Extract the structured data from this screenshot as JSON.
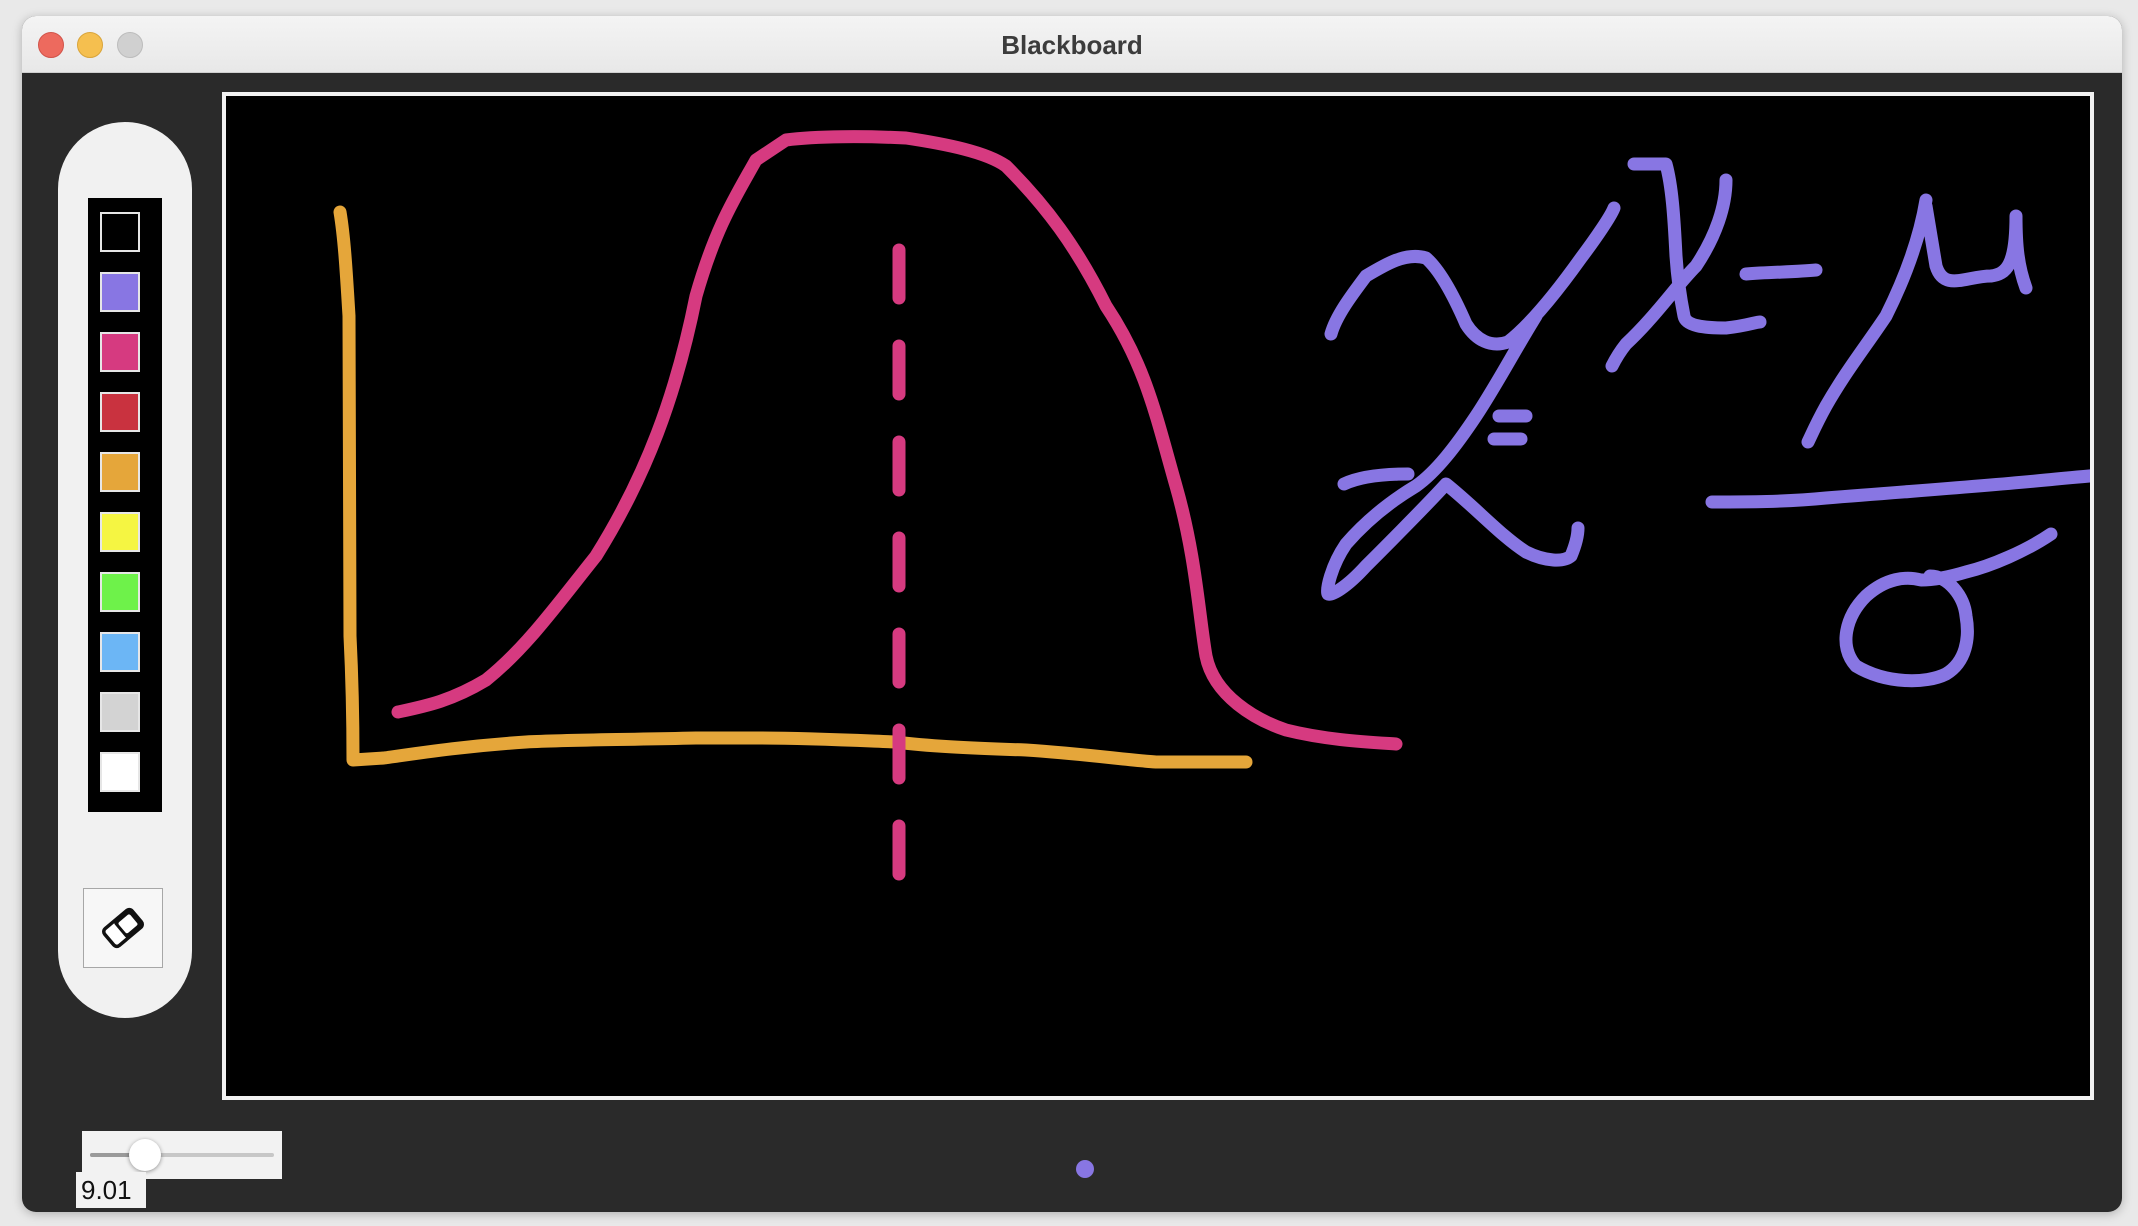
{
  "window": {
    "title": "Blackboard"
  },
  "palette": {
    "swatches": [
      {
        "name": "black",
        "color": "#000000"
      },
      {
        "name": "purple",
        "color": "#8876e3"
      },
      {
        "name": "pink",
        "color": "#d63a80"
      },
      {
        "name": "red",
        "color": "#c9323f"
      },
      {
        "name": "orange",
        "color": "#e5a63a"
      },
      {
        "name": "yellow",
        "color": "#f5f542"
      },
      {
        "name": "green",
        "color": "#6ef24a"
      },
      {
        "name": "light-blue",
        "color": "#6cb6f5"
      },
      {
        "name": "light-gray",
        "color": "#d3d3d3"
      },
      {
        "name": "white",
        "color": "#ffffff"
      }
    ],
    "selected": "purple",
    "eraser_icon": "eraser-icon"
  },
  "brush": {
    "size": 9.01,
    "size_label": "9.01",
    "slider_fraction": 0.3,
    "preview_color": "#8876e3"
  },
  "canvas": {
    "background": "#000000",
    "stroke_colors": {
      "axes": "#e5a63a",
      "curve": "#d63a80",
      "formula": "#8876e3"
    }
  }
}
